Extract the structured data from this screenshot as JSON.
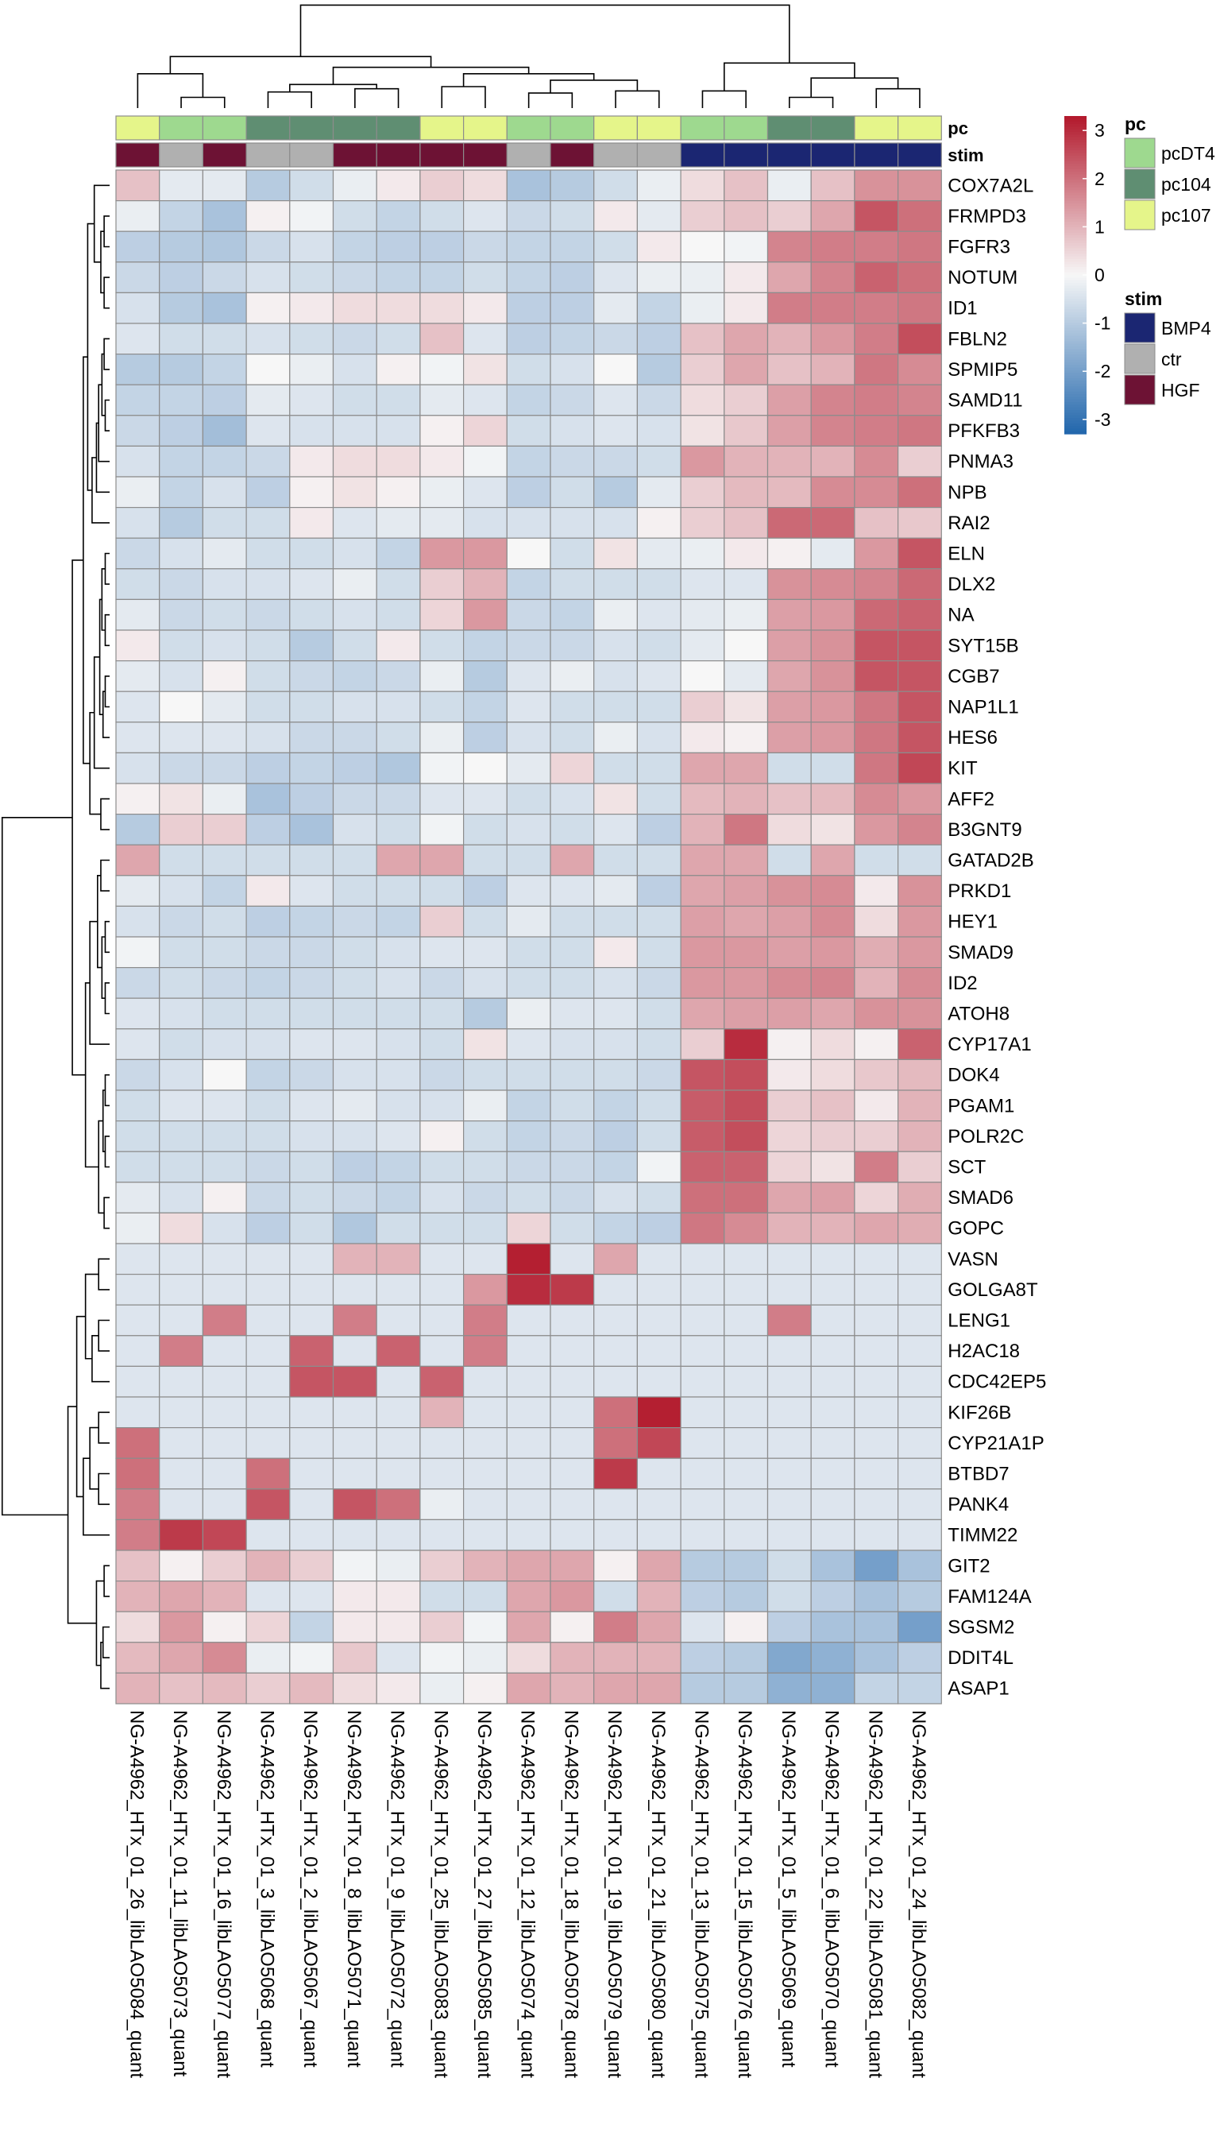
{
  "chart_data": {
    "type": "heatmap",
    "title": "",
    "xlabel": "",
    "ylabel": "",
    "clustering": {
      "rows": "dendrogram-left",
      "columns": "dendrogram-top"
    },
    "columns": [
      "NG-A4962_HTx_01_26_libLAO5084_quant",
      "NG-A4962_HTx_01_11_libLAO5073_quant",
      "NG-A4962_HTx_01_16_libLAO5077_quant",
      "NG-A4962_HTx_01_3_libLAO5068_quant",
      "NG-A4962_HTx_01_2_libLAO5067_quant",
      "NG-A4962_HTx_01_8_libLAO5071_quant",
      "NG-A4962_HTx_01_9_libLAO5072_quant",
      "NG-A4962_HTx_01_25_libLAO5083_quant",
      "NG-A4962_HTx_01_27_libLAO5085_quant",
      "NG-A4962_HTx_01_12_libLAO5074_quant",
      "NG-A4962_HTx_01_18_libLAO5078_quant",
      "NG-A4962_HTx_01_19_libLAO5079_quant",
      "NG-A4962_HTx_01_21_libLAO5080_quant",
      "NG-A4962_HTx_01_13_libLAO5075_quant",
      "NG-A4962_HTx_01_15_libLAO5076_quant",
      "NG-A4962_HTx_01_5_libLAO5069_quant",
      "NG-A4962_HTx_01_6_libLAO5070_quant",
      "NG-A4962_HTx_01_22_libLAO5081_quant",
      "NG-A4962_HTx_01_24_libLAO5082_quant"
    ],
    "rows": [
      "COX7A2L",
      "FRMPD3",
      "FGFR3",
      "NOTUM",
      "ID1",
      "FBLN2",
      "SPMIP5",
      "SAMD11",
      "PFKFB3",
      "PNMA3",
      "NPB",
      "RAI2",
      "ELN",
      "DLX2",
      "NA",
      "SYT15B",
      "CGB7",
      "NAP1L1",
      "HES6",
      "KIT",
      "AFF2",
      "B3GNT9",
      "GATAD2B",
      "PRKD1",
      "HEY1",
      "SMAD9",
      "ID2",
      "ATOH8",
      "CYP17A1",
      "DOK4",
      "PGAM1",
      "POLR2C",
      "SCT",
      "SMAD6",
      "GOPC",
      "VASN",
      "GOLGA8T",
      "LENG1",
      "H2AC18",
      "CDC42EP5",
      "KIF26B",
      "CYP21A1P",
      "BTBD7",
      "PANK4",
      "TIMM22",
      "GIT2",
      "FAM124A",
      "SGSM2",
      "DDIT4L",
      "ASAP1"
    ],
    "values": [
      [
        0.8,
        -0.3,
        -0.3,
        -1.0,
        -0.6,
        -0.2,
        0.2,
        0.6,
        0.4,
        -1.2,
        -1.0,
        -0.6,
        -0.2,
        0.4,
        0.8,
        -0.2,
        0.8,
        1.5,
        1.5
      ],
      [
        -0.2,
        -0.8,
        -1.2,
        0.1,
        -0.1,
        -0.6,
        -0.8,
        -0.6,
        -0.4,
        -0.7,
        -0.6,
        0.2,
        -0.3,
        0.6,
        0.8,
        0.6,
        1.2,
        2.4,
        2.0
      ],
      [
        -0.9,
        -1.0,
        -1.1,
        -0.7,
        -0.5,
        -0.8,
        -0.9,
        -0.9,
        -0.7,
        -0.8,
        -0.8,
        -0.6,
        0.2,
        0.0,
        -0.1,
        1.7,
        1.8,
        1.8,
        1.9
      ],
      [
        -0.7,
        -0.9,
        -0.7,
        -0.5,
        -0.6,
        -0.7,
        -0.8,
        -0.8,
        -0.6,
        -0.8,
        -0.9,
        -0.4,
        -0.2,
        -0.2,
        0.2,
        1.2,
        1.7,
        2.2,
        2.0
      ],
      [
        -0.5,
        -1.0,
        -1.2,
        0.1,
        0.2,
        0.4,
        0.4,
        0.4,
        0.2,
        -0.9,
        -0.9,
        -0.3,
        -0.8,
        -0.2,
        0.2,
        1.8,
        1.8,
        1.8,
        1.9
      ],
      [
        -0.4,
        -0.6,
        -0.6,
        -0.5,
        -0.6,
        -0.7,
        -0.6,
        0.8,
        -0.4,
        -0.9,
        -0.8,
        -0.7,
        -0.9,
        0.8,
        1.2,
        1.0,
        1.4,
        1.8,
        2.5
      ],
      [
        -1.0,
        -1.0,
        -0.8,
        0.0,
        -0.2,
        -0.5,
        0.1,
        -0.1,
        0.3,
        -0.6,
        -0.5,
        0.0,
        -1.0,
        0.6,
        1.2,
        0.8,
        1.0,
        1.9,
        1.6
      ],
      [
        -0.8,
        -0.8,
        -0.9,
        -0.3,
        -0.4,
        -0.6,
        -0.6,
        -0.3,
        -0.4,
        -0.8,
        -0.7,
        -0.4,
        -0.7,
        0.4,
        0.6,
        1.3,
        1.7,
        1.8,
        1.7
      ],
      [
        -0.7,
        -0.9,
        -1.3,
        -0.4,
        -0.5,
        -0.5,
        -0.5,
        0.1,
        0.5,
        -0.6,
        -0.5,
        -0.4,
        -0.5,
        0.3,
        0.7,
        1.3,
        1.7,
        1.8,
        1.9
      ],
      [
        -0.5,
        -0.8,
        -0.8,
        -0.7,
        0.2,
        0.4,
        0.4,
        0.2,
        -0.1,
        -0.8,
        -0.7,
        -0.7,
        -0.6,
        1.4,
        1.0,
        1.0,
        1.0,
        1.6,
        0.6
      ],
      [
        -0.2,
        -0.8,
        -0.5,
        -0.9,
        0.1,
        0.3,
        0.1,
        -0.2,
        -0.4,
        -0.9,
        -0.6,
        -1.0,
        -0.3,
        0.6,
        0.9,
        0.9,
        1.6,
        1.6,
        2.0
      ],
      [
        -0.5,
        -1.0,
        -0.6,
        -0.6,
        0.2,
        -0.4,
        -0.3,
        -0.3,
        -0.5,
        -0.5,
        -0.5,
        -0.5,
        0.1,
        0.6,
        0.8,
        2.1,
        2.1,
        0.8,
        0.7
      ],
      [
        -0.7,
        -0.5,
        -0.3,
        -0.6,
        -0.6,
        -0.5,
        -0.8,
        1.4,
        1.4,
        0.0,
        -0.6,
        0.3,
        -0.3,
        -0.2,
        0.2,
        0.1,
        -0.3,
        1.4,
        2.4
      ],
      [
        -0.6,
        -0.7,
        -0.5,
        -0.5,
        -0.4,
        -0.2,
        -0.6,
        0.6,
        1.0,
        -0.8,
        -0.6,
        -0.6,
        -0.6,
        -0.4,
        -0.4,
        1.5,
        1.6,
        1.7,
        2.1
      ],
      [
        -0.3,
        -0.7,
        -0.6,
        -0.7,
        -0.6,
        -0.5,
        -0.6,
        0.5,
        1.4,
        -0.7,
        -0.8,
        -0.2,
        -0.4,
        -0.3,
        -0.2,
        1.3,
        1.4,
        2.1,
        2.2
      ],
      [
        0.2,
        -0.6,
        -0.5,
        -0.6,
        -1.0,
        -0.6,
        0.2,
        -0.6,
        -0.8,
        -0.7,
        -0.7,
        -0.5,
        -0.6,
        -0.3,
        0.0,
        1.3,
        1.5,
        2.4,
        2.4
      ],
      [
        -0.3,
        -0.5,
        0.1,
        -0.6,
        -0.7,
        -0.8,
        -0.7,
        -0.2,
        -1.0,
        -0.4,
        -0.2,
        -0.5,
        -0.4,
        0.0,
        -0.3,
        1.2,
        1.5,
        2.4,
        2.4
      ],
      [
        -0.4,
        0.0,
        -0.3,
        -0.6,
        -0.6,
        -0.5,
        -0.5,
        -0.6,
        -0.8,
        -0.4,
        -0.6,
        -0.6,
        -0.6,
        0.6,
        0.3,
        1.3,
        1.4,
        1.9,
        2.4
      ],
      [
        -0.4,
        -0.4,
        -0.4,
        -0.5,
        -0.7,
        -0.7,
        -0.6,
        -0.2,
        -0.9,
        -0.5,
        -0.6,
        -0.2,
        -0.5,
        0.2,
        0.1,
        1.3,
        1.4,
        1.9,
        2.4
      ],
      [
        -0.5,
        -0.7,
        -0.7,
        -0.9,
        -0.8,
        -0.9,
        -1.1,
        -0.1,
        0.0,
        -0.3,
        0.5,
        -0.6,
        -0.6,
        1.2,
        1.2,
        -0.6,
        -0.6,
        1.9,
        2.6
      ],
      [
        0.1,
        0.3,
        -0.2,
        -1.2,
        -0.9,
        -0.7,
        -0.7,
        -0.4,
        -0.4,
        -0.6,
        -0.5,
        0.3,
        -0.6,
        0.9,
        1.0,
        0.8,
        0.9,
        1.6,
        1.4
      ],
      [
        -1.0,
        0.6,
        0.6,
        -0.9,
        -1.2,
        -0.5,
        -0.6,
        -0.1,
        -0.6,
        -0.5,
        -0.6,
        -0.4,
        -0.9,
        1.0,
        1.9,
        0.4,
        0.3,
        1.4,
        1.7
      ],
      [
        1.2,
        -0.6,
        -0.6,
        -0.6,
        -0.6,
        -0.6,
        1.2,
        1.2,
        -0.6,
        -0.6,
        1.2,
        -0.6,
        -0.6,
        1.2,
        1.2,
        -0.6,
        1.2,
        -0.6,
        -0.6
      ],
      [
        -0.3,
        -0.5,
        -0.8,
        0.2,
        -0.4,
        -0.6,
        -0.6,
        -0.6,
        -0.9,
        -0.4,
        -0.4,
        -0.3,
        -0.9,
        1.2,
        1.3,
        1.5,
        1.6,
        0.2,
        1.5
      ],
      [
        -0.5,
        -0.7,
        -0.6,
        -0.9,
        -0.8,
        -0.7,
        -0.8,
        0.6,
        -0.6,
        -0.3,
        -0.6,
        -0.6,
        -0.6,
        1.3,
        1.2,
        1.3,
        1.6,
        0.4,
        1.4
      ],
      [
        -0.1,
        -0.6,
        -0.6,
        -0.7,
        -0.7,
        -0.6,
        -0.5,
        -0.4,
        -0.4,
        -0.6,
        -0.6,
        0.2,
        -0.6,
        1.4,
        1.4,
        1.3,
        1.4,
        1.1,
        1.4
      ],
      [
        -0.7,
        -0.6,
        -0.7,
        -0.8,
        -0.7,
        -0.6,
        -0.5,
        -0.7,
        -0.5,
        -0.6,
        -0.6,
        -0.5,
        -0.7,
        1.4,
        1.4,
        1.6,
        1.7,
        1.0,
        1.6
      ],
      [
        -0.4,
        -0.5,
        -0.6,
        -0.6,
        -0.6,
        -0.6,
        -0.6,
        -0.6,
        -1.0,
        -0.2,
        -0.4,
        -0.4,
        -0.6,
        1.2,
        1.3,
        1.3,
        1.2,
        1.5,
        1.5
      ],
      [
        -0.4,
        -0.6,
        -0.5,
        -0.5,
        -0.4,
        -0.4,
        -0.5,
        -0.6,
        0.3,
        -0.4,
        -0.5,
        -0.5,
        -0.6,
        0.6,
        3.0,
        0.1,
        0.4,
        0.1,
        2.2
      ],
      [
        -0.7,
        -0.5,
        0.0,
        -0.8,
        -0.7,
        -0.5,
        -0.5,
        -0.7,
        -0.6,
        -0.6,
        -0.6,
        -0.6,
        -0.7,
        2.4,
        2.5,
        0.2,
        0.4,
        0.7,
        0.9
      ],
      [
        -0.6,
        -0.4,
        -0.4,
        -0.6,
        -0.4,
        -0.3,
        -0.5,
        -0.5,
        -0.2,
        -0.8,
        -0.6,
        -0.8,
        -0.6,
        2.3,
        2.5,
        0.6,
        0.8,
        0.2,
        1.0
      ],
      [
        -0.6,
        -0.6,
        -0.6,
        -0.6,
        -0.5,
        -0.5,
        -0.4,
        0.1,
        -0.6,
        -0.8,
        -0.7,
        -0.9,
        -0.6,
        2.3,
        2.5,
        0.5,
        0.6,
        0.6,
        1.0
      ],
      [
        -0.6,
        -0.6,
        -0.6,
        -0.7,
        -0.6,
        -0.9,
        -0.8,
        -0.6,
        -0.6,
        -0.7,
        -0.7,
        -0.8,
        -0.1,
        2.2,
        2.2,
        0.5,
        0.3,
        1.8,
        0.6
      ],
      [
        -0.3,
        -0.5,
        0.1,
        -0.7,
        -0.6,
        -0.7,
        -0.8,
        -0.5,
        -0.7,
        -0.6,
        -0.7,
        -0.5,
        -0.6,
        2.0,
        2.0,
        1.2,
        1.3,
        0.5,
        1.1
      ],
      [
        -0.2,
        0.4,
        -0.5,
        -0.9,
        -0.6,
        -1.1,
        -0.6,
        -0.6,
        -0.6,
        0.5,
        -0.6,
        -0.8,
        -0.9,
        1.9,
        1.6,
        1.0,
        1.0,
        1.2,
        1.1
      ],
      [
        -0.4,
        -0.4,
        -0.4,
        -0.4,
        -0.4,
        1.0,
        1.0,
        -0.4,
        -0.4,
        3.2,
        -0.4,
        1.2,
        -0.4,
        -0.4,
        -0.4,
        -0.4,
        -0.4,
        -0.4,
        -0.4
      ],
      [
        -0.4,
        -0.4,
        -0.4,
        -0.4,
        -0.4,
        -0.4,
        -0.4,
        -0.4,
        1.4,
        3.0,
        2.8,
        -0.4,
        -0.4,
        -0.4,
        -0.4,
        -0.4,
        -0.4,
        -0.4,
        -0.4
      ],
      [
        -0.4,
        -0.4,
        1.8,
        -0.4,
        -0.4,
        1.8,
        -0.4,
        -0.4,
        1.8,
        -0.4,
        -0.4,
        -0.4,
        -0.4,
        -0.4,
        -0.4,
        1.8,
        -0.4,
        -0.4,
        -0.4
      ],
      [
        -0.4,
        1.8,
        -0.4,
        -0.4,
        2.2,
        -0.4,
        2.2,
        -0.4,
        1.8,
        -0.4,
        -0.4,
        -0.4,
        -0.4,
        -0.4,
        -0.4,
        -0.4,
        -0.4,
        -0.4,
        -0.4
      ],
      [
        -0.4,
        -0.4,
        -0.4,
        -0.4,
        2.4,
        2.4,
        -0.4,
        2.2,
        -0.4,
        -0.4,
        -0.4,
        -0.4,
        -0.4,
        -0.4,
        -0.4,
        -0.4,
        -0.4,
        -0.4,
        -0.4
      ],
      [
        -0.4,
        -0.4,
        -0.4,
        -0.4,
        -0.4,
        -0.4,
        -0.4,
        1.0,
        -0.4,
        -0.4,
        -0.4,
        2.0,
        3.2,
        -0.4,
        -0.4,
        -0.4,
        -0.4,
        -0.4,
        -0.4
      ],
      [
        2.0,
        -0.4,
        -0.4,
        -0.4,
        -0.4,
        -0.4,
        -0.4,
        -0.4,
        -0.4,
        -0.4,
        -0.4,
        2.0,
        2.6,
        -0.4,
        -0.4,
        -0.4,
        -0.4,
        -0.4,
        -0.4
      ],
      [
        2.0,
        -0.4,
        -0.4,
        2.0,
        -0.4,
        -0.4,
        -0.4,
        -0.4,
        -0.4,
        -0.4,
        -0.4,
        2.8,
        -0.4,
        -0.4,
        -0.4,
        -0.4,
        -0.4,
        -0.4,
        -0.4
      ],
      [
        1.8,
        -0.4,
        -0.4,
        2.4,
        -0.4,
        2.4,
        2.0,
        -0.2,
        -0.4,
        -0.4,
        -0.4,
        -0.4,
        -0.4,
        -0.4,
        -0.4,
        -0.4,
        -0.4,
        -0.4,
        -0.4
      ],
      [
        1.8,
        2.8,
        2.6,
        -0.4,
        -0.4,
        -0.4,
        -0.4,
        -0.4,
        -0.4,
        -0.4,
        -0.4,
        -0.4,
        -0.4,
        -0.4,
        -0.4,
        -0.4,
        -0.4,
        -0.4,
        -0.4
      ],
      [
        0.8,
        0.1,
        0.6,
        1.0,
        0.6,
        -0.1,
        -0.2,
        0.6,
        1.0,
        1.2,
        1.2,
        0.1,
        1.2,
        -1.0,
        -1.0,
        -0.6,
        -1.2,
        -2.0,
        -1.2
      ],
      [
        1.0,
        1.2,
        1.0,
        -0.4,
        -0.4,
        0.2,
        0.2,
        -0.6,
        -0.6,
        1.2,
        1.4,
        -0.6,
        1.0,
        -0.9,
        -1.0,
        -0.6,
        -0.9,
        -1.2,
        -1.0
      ],
      [
        0.4,
        1.4,
        0.1,
        0.5,
        -0.8,
        0.2,
        0.2,
        0.6,
        -0.1,
        1.2,
        0.1,
        1.8,
        1.2,
        -0.4,
        0.1,
        -0.9,
        -1.2,
        -1.2,
        -2.0
      ],
      [
        0.9,
        1.2,
        1.6,
        -0.2,
        -0.1,
        0.7,
        -0.4,
        -0.1,
        -0.2,
        0.4,
        1.0,
        1.0,
        1.0,
        -0.9,
        -1.0,
        -1.8,
        -1.6,
        -1.2,
        -0.9
      ],
      [
        1.0,
        0.8,
        0.9,
        0.6,
        0.9,
        0.4,
        0.2,
        -0.2,
        0.1,
        1.2,
        1.0,
        1.2,
        1.2,
        -1.0,
        -1.0,
        -1.6,
        -1.6,
        -0.8,
        -0.8
      ]
    ],
    "color_scale": {
      "min": -3.3,
      "max": 3.3,
      "ticks": [
        3,
        2,
        1,
        0,
        -1,
        -2,
        -3
      ],
      "low_color": "#2166ac",
      "mid_color": "#f7f7f7",
      "high_color": "#b2182b"
    },
    "annotations": {
      "pc": {
        "label": "pc",
        "levels": [
          {
            "name": "pcDT4",
            "color": "#9ed98f"
          },
          {
            "name": "pc104",
            "color": "#5f8e72"
          },
          {
            "name": "pc107",
            "color": "#e5f58a"
          }
        ],
        "values": [
          "pc107",
          "pcDT4",
          "pcDT4",
          "pc104",
          "pc104",
          "pc104",
          "pc104",
          "pc107",
          "pc107",
          "pcDT4",
          "pcDT4",
          "pc107",
          "pc107",
          "pcDT4",
          "pcDT4",
          "pc104",
          "pc104",
          "pc107",
          "pc107"
        ]
      },
      "stim": {
        "label": "stim",
        "levels": [
          {
            "name": "BMP4",
            "color": "#1b2672"
          },
          {
            "name": "ctr",
            "color": "#b0b0b0"
          },
          {
            "name": "HGF",
            "color": "#6d1234"
          }
        ],
        "values": [
          "HGF",
          "ctr",
          "HGF",
          "ctr",
          "ctr",
          "HGF",
          "HGF",
          "HGF",
          "HGF",
          "ctr",
          "HGF",
          "ctr",
          "ctr",
          "BMP4",
          "BMP4",
          "BMP4",
          "BMP4",
          "BMP4",
          "BMP4"
        ]
      }
    },
    "legend_placement": "right"
  }
}
